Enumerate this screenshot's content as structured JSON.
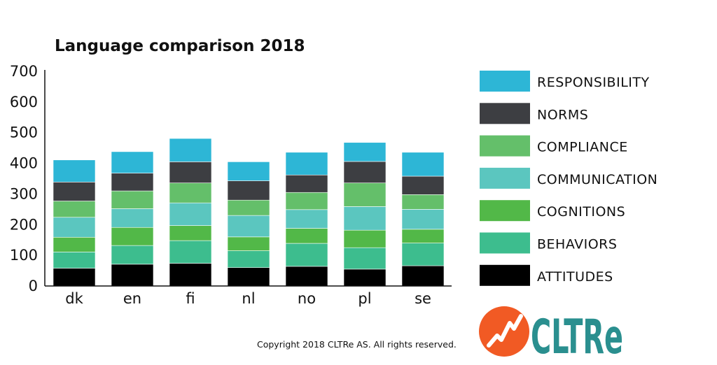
{
  "chart_data": {
    "type": "bar",
    "stacked": true,
    "title": "Language comparison 2018",
    "xlabel": "",
    "ylabel": "",
    "ylim": [
      0,
      700
    ],
    "yticks": [
      0,
      100,
      200,
      300,
      400,
      500,
      600,
      700
    ],
    "categories": [
      "dk",
      "en",
      "fi",
      "nl",
      "no",
      "pl",
      "se"
    ],
    "legend_position": "right",
    "series": [
      {
        "name": "ATTITUDES",
        "color": "#000000",
        "values": [
          58,
          71,
          74,
          60,
          64,
          55,
          66
        ]
      },
      {
        "name": "BEHAVIORS",
        "color": "#3dbd8e",
        "values": [
          53,
          61,
          74,
          55,
          75,
          70,
          74
        ]
      },
      {
        "name": "COGNITIONS",
        "color": "#52b848",
        "values": [
          48,
          59,
          49,
          45,
          49,
          57,
          45
        ]
      },
      {
        "name": "COMMUNICATION",
        "color": "#5bc6bf",
        "values": [
          65,
          61,
          74,
          70,
          61,
          77,
          65
        ]
      },
      {
        "name": "COMPLIANCE",
        "color": "#64bf6a",
        "values": [
          53,
          58,
          65,
          50,
          56,
          77,
          48
        ]
      },
      {
        "name": "NORMS",
        "color": "#3d3e42",
        "values": [
          62,
          58,
          69,
          63,
          57,
          70,
          60
        ]
      },
      {
        "name": "RESPONSIBILITY",
        "color": "#2db6d6",
        "values": [
          72,
          70,
          76,
          62,
          74,
          62,
          78
        ]
      }
    ]
  },
  "footer": {
    "copyright": "Copyright 2018 CLTRe AS. All rights reserved."
  },
  "logo": {
    "text": "CLTRe",
    "icon": "trend-line-icon",
    "circle_color": "#f15a24",
    "text_color": "#2a8f8f"
  }
}
